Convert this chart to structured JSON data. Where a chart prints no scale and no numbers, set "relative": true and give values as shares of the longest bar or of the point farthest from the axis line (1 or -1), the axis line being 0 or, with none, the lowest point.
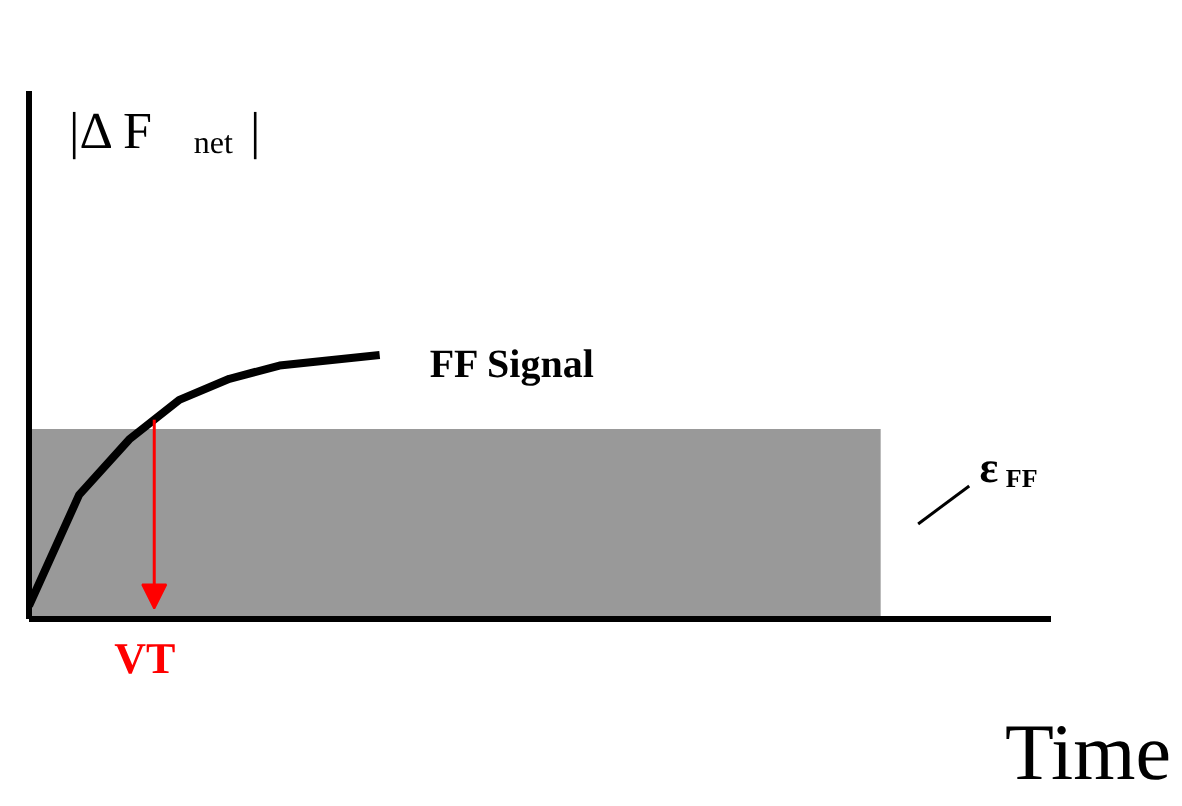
{
  "chart_data": {
    "type": "line",
    "relative": true,
    "ylabel": "|Δ F$_{net}$|",
    "xlabel": "Time",
    "marker": "none",
    "line_style": "solid",
    "categories": [
      null,
      null,
      null,
      null,
      null,
      null,
      null,
      null,
      null,
      null,
      null,
      null,
      null,
      null,
      null,
      null,
      null,
      null
    ],
    "series": [
      {
        "name": "FF Signal",
        "color": "#000000",
        "values": [
          0.05,
          0.47,
          0.68,
          0.83,
          0.91,
          0.96,
          0.98,
          1.0,
          null,
          null,
          null,
          null,
          null,
          null,
          null,
          null,
          null,
          null
        ]
      },
      {
        "name": "ε$_{FF}$",
        "type": "area",
        "color": "#999999",
        "values": [
          0.72,
          0.72,
          0.72,
          0.72,
          0.72,
          0.72,
          0.72,
          0.72,
          0.72,
          0.72,
          0.72,
          0.72,
          0.72,
          0.72,
          0.72,
          0.72,
          0.72,
          0.72
        ]
      }
    ],
    "annotations": [
      "VT"
    ]
  }
}
